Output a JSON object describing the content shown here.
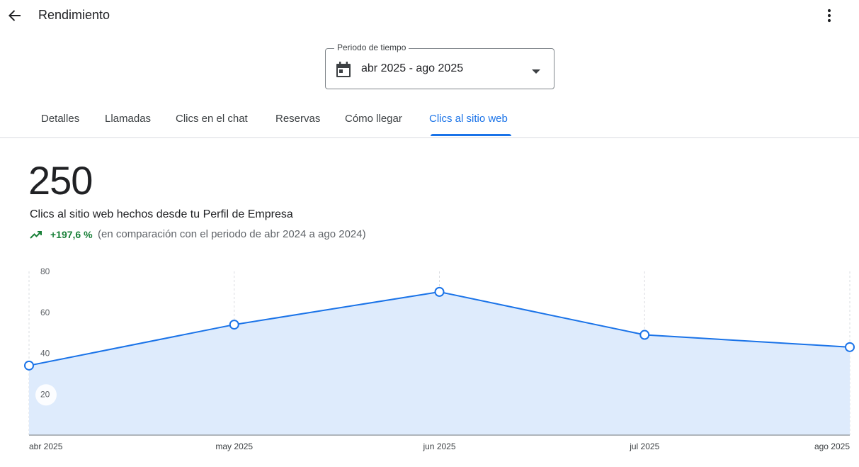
{
  "header": {
    "title": "Rendimiento",
    "back_icon": "arrow-back-icon",
    "more_icon": "more-vert-icon"
  },
  "period": {
    "label": "Periodo de tiempo",
    "value": "abr 2025 - ago 2025",
    "icon": "calendar-icon"
  },
  "tabs": [
    {
      "label": "Detalles",
      "active": false
    },
    {
      "label": "Llamadas",
      "active": false
    },
    {
      "label": "Clics en el chat",
      "active": false
    },
    {
      "label": "Reservas",
      "active": false
    },
    {
      "label": "Cómo llegar",
      "active": false
    },
    {
      "label": "Clics al sitio web",
      "active": true
    }
  ],
  "metric": {
    "value": "250",
    "description": "Clics al sitio web hechos desde tu Perfil de Empresa",
    "trend": "+197,6 %",
    "comparison": "(en comparación con el periodo de abr 2024 a ago 2024)"
  },
  "colors": {
    "accent": "#1a73e8",
    "area_fill": "#deebfc",
    "trend_positive": "#188038"
  },
  "chart_data": {
    "type": "area",
    "categories": [
      "abr 2025",
      "may 2025",
      "jun 2025",
      "jul 2025",
      "ago 2025"
    ],
    "values": [
      34,
      54,
      70,
      49,
      43
    ],
    "yticks": [
      20,
      40,
      60,
      80
    ],
    "ylim": [
      0,
      80
    ],
    "grid": "vertical-dashed"
  }
}
